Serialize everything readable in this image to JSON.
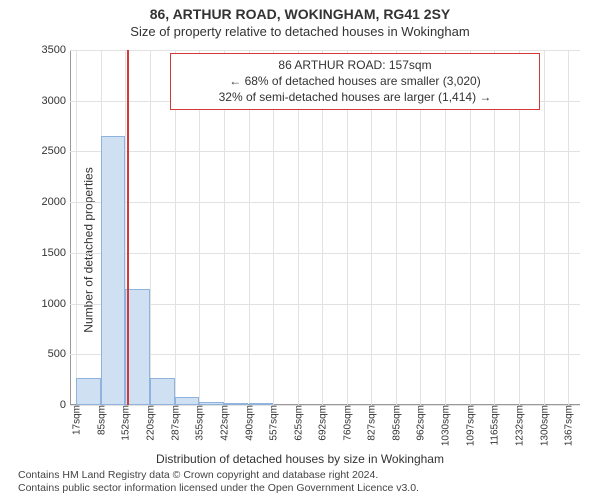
{
  "title": "86, ARTHUR ROAD, WOKINGHAM, RG41 2SY",
  "subtitle": "Size of property relative to detached houses in Wokingham",
  "infobox": {
    "line1": "86 ARTHUR ROAD: 157sqm",
    "line2": "← 68% of detached houses are smaller (3,020)",
    "line3": "32% of semi-detached houses are larger (1,414) →",
    "border_color": "#d13a3a"
  },
  "ylabel": "Number of detached properties",
  "xlabel": "Distribution of detached houses by size in Wokingham",
  "footer": {
    "line1": "Contains HM Land Registry data © Crown copyright and database right 2024.",
    "line2": "Contains public sector information licensed under the Open Government Licence v3.0."
  },
  "chart": {
    "type": "histogram",
    "ylim": [
      0,
      3500
    ],
    "ytick_step": 500,
    "xtick_labels": [
      "17sqm",
      "85sqm",
      "152sqm",
      "220sqm",
      "287sqm",
      "355sqm",
      "422sqm",
      "490sqm",
      "557sqm",
      "625sqm",
      "692sqm",
      "760sqm",
      "827sqm",
      "895sqm",
      "962sqm",
      "1030sqm",
      "1097sqm",
      "1165sqm",
      "1232sqm",
      "1300sqm",
      "1367sqm"
    ],
    "xtick_positions": [
      17,
      85,
      152,
      220,
      287,
      355,
      422,
      490,
      557,
      625,
      692,
      760,
      827,
      895,
      962,
      1030,
      1097,
      1165,
      1232,
      1300,
      1367
    ],
    "x_min": 0,
    "x_max": 1400,
    "bars": [
      {
        "x0": 17,
        "x1": 85,
        "count": 270
      },
      {
        "x0": 85,
        "x1": 152,
        "count": 2650
      },
      {
        "x0": 152,
        "x1": 220,
        "count": 1140
      },
      {
        "x0": 220,
        "x1": 287,
        "count": 270
      },
      {
        "x0": 287,
        "x1": 355,
        "count": 80
      },
      {
        "x0": 355,
        "x1": 422,
        "count": 25
      },
      {
        "x0": 422,
        "x1": 490,
        "count": 10
      },
      {
        "x0": 490,
        "x1": 557,
        "count": 5
      }
    ],
    "bar_fill": "#cfe0f3",
    "bar_border": "#8fb3dc",
    "grid_color": "#e2e2e2",
    "marker": {
      "x": 157,
      "color": "#d13a3a"
    },
    "background": "#ffffff",
    "tick_fontsize": 11
  }
}
